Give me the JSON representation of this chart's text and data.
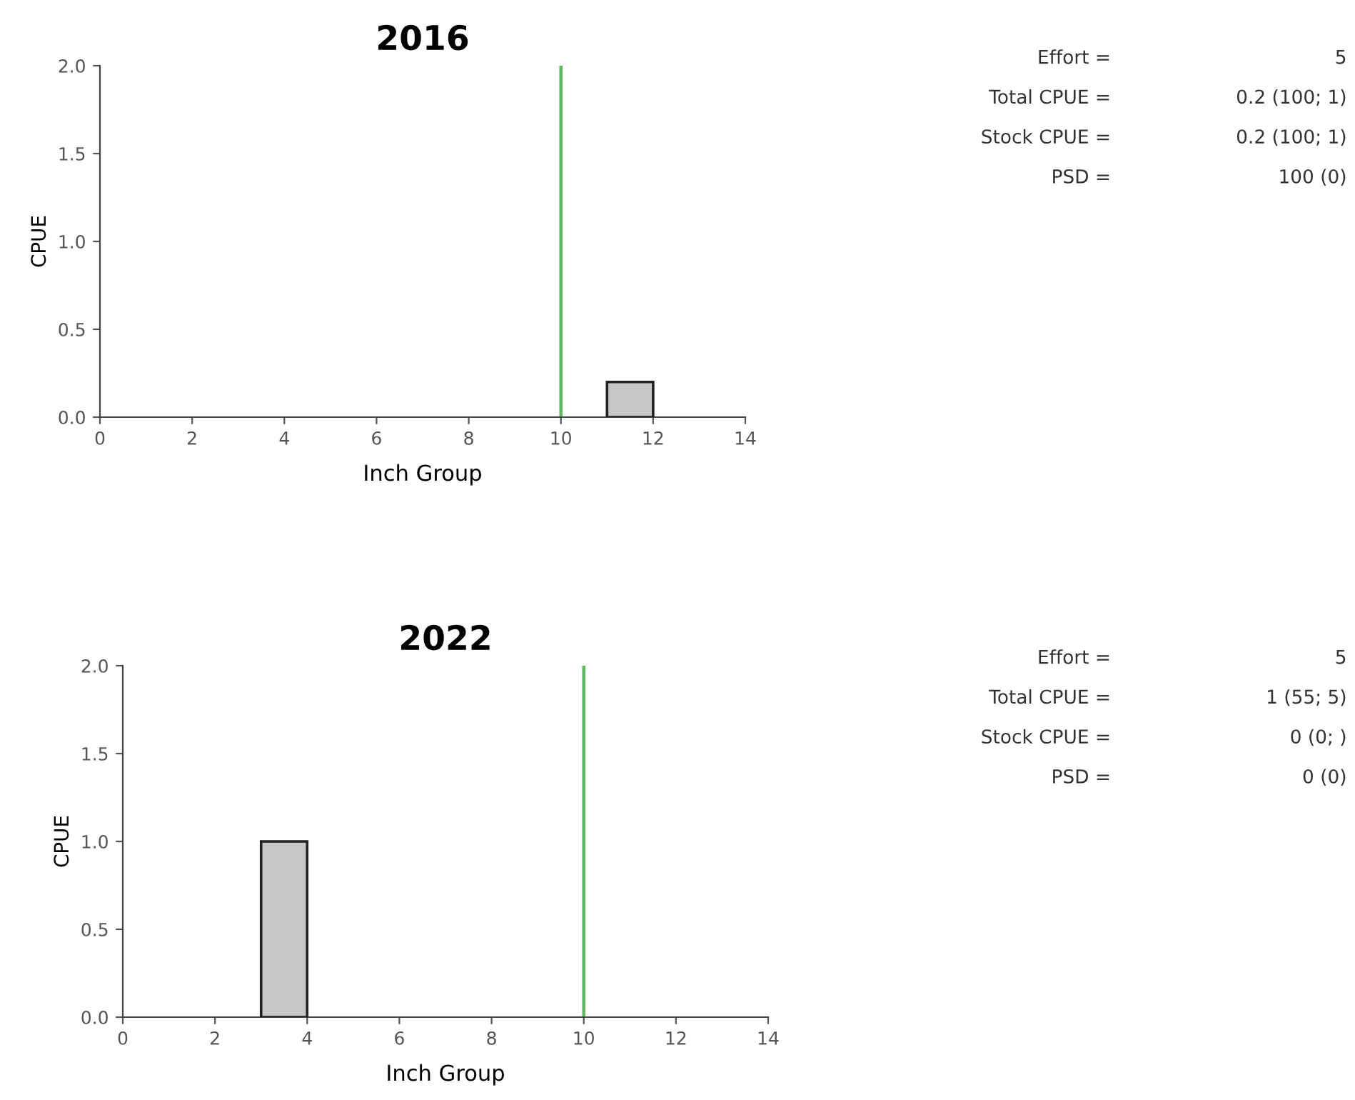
{
  "chart_data": [
    {
      "type": "histogram",
      "title": "2016",
      "xlabel": "Inch Group",
      "ylabel": "CPUE",
      "bins": [
        11,
        12
      ],
      "values": [
        0.2
      ],
      "color": "#c6c6c6",
      "xlim": [
        0,
        14
      ],
      "xticks": [
        0,
        2,
        4,
        6,
        8,
        10,
        12,
        14
      ],
      "ylim": [
        0,
        2
      ],
      "yticks": [
        {
          "value": 0,
          "label": "0.0"
        },
        {
          "value": 0.5,
          "label": "0.5"
        },
        {
          "value": 1,
          "label": "1.0"
        },
        {
          "value": 1.5,
          "label": "1.5"
        },
        {
          "value": 2,
          "label": "2.0"
        }
      ],
      "ref_lines": [
        {
          "axis": "x",
          "value": 10,
          "label": null,
          "color": "#5cb85c"
        }
      ]
    },
    {
      "type": "other",
      "annotations": [
        "Effort =",
        "5",
        "Total CPUE =",
        "0.2 (100; 1)",
        "Stock CPUE =",
        "0.2 (100; 1)",
        "PSD =",
        "100 (0)"
      ]
    },
    {
      "type": "histogram",
      "title": "2022",
      "xlabel": "Inch Group",
      "ylabel": "CPUE",
      "bins": [
        3,
        4
      ],
      "values": [
        1
      ],
      "color": "#c6c6c6",
      "xlim": [
        0,
        14
      ],
      "xticks": [
        0,
        2,
        4,
        6,
        8,
        10,
        12,
        14
      ],
      "ylim": [
        0,
        2
      ],
      "yticks": [
        {
          "value": 0,
          "label": "0.0"
        },
        {
          "value": 0.5,
          "label": "0.5"
        },
        {
          "value": 1,
          "label": "1.0"
        },
        {
          "value": 1.5,
          "label": "1.5"
        },
        {
          "value": 2,
          "label": "2.0"
        }
      ],
      "ref_lines": [
        {
          "axis": "x",
          "value": 10,
          "label": null,
          "color": "#5cb85c"
        }
      ]
    },
    {
      "type": "other",
      "annotations": [
        "Effort =",
        "5",
        "Total CPUE =",
        "1 (55; 5)",
        "Stock CPUE =",
        "0 (0; )",
        "PSD =",
        "0 (0)"
      ]
    }
  ]
}
